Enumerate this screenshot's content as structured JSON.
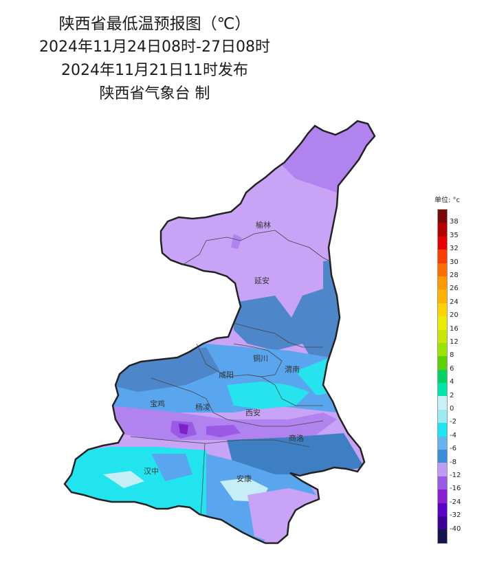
{
  "title": {
    "line1": "陕西省最低温预报图（℃）",
    "line2": "2024年11月24日08时-27日08时",
    "line3": "2024年11月21日11时发布",
    "line4": "陕西省气象台 制"
  },
  "cities": {
    "yulin": "榆林",
    "yanan": "延安",
    "tongchuan": "铜川",
    "weinan": "渭南",
    "xianyang": "咸阳",
    "baoji": "宝鸡",
    "yangling": "杨凌",
    "xian": "西安",
    "shangluo": "商洛",
    "hanzhong": "汉中",
    "ankang": "安康"
  },
  "legend": {
    "unit": "单位: °c",
    "colors": [
      "#7a0a0a",
      "#b50000",
      "#e60000",
      "#ff3c00",
      "#ff6e00",
      "#ff9900",
      "#ffb300",
      "#ffd200",
      "#ecec00",
      "#c8e600",
      "#9be600",
      "#5ad200",
      "#00d264",
      "#00e6aa",
      "#c8f0f5",
      "#9bebf5",
      "#1ee6f0",
      "#64b4f0",
      "#3c8cdc",
      "#be9bf5",
      "#9b5ae6",
      "#8c1ed2",
      "#5a00c8",
      "#3c0096",
      "#141450"
    ],
    "labels": [
      "38",
      "35",
      "32",
      "30",
      "28",
      "26",
      "24",
      "20",
      "16",
      "12",
      "8",
      "6",
      "4",
      "2",
      "0",
      "-2",
      "-4",
      "-6",
      "-8",
      "-12",
      "-16",
      "-24",
      "-32",
      "-40"
    ]
  }
}
